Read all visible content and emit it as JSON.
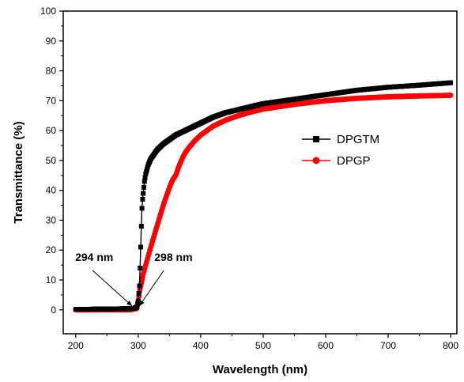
{
  "chart_data": {
    "type": "line",
    "title": "",
    "xlabel": "Wavelength (nm)",
    "ylabel": "Transmittance (%)",
    "xlim": [
      180,
      810
    ],
    "ylim": [
      -8,
      100
    ],
    "xticks": [
      200,
      300,
      400,
      500,
      600,
      700,
      800
    ],
    "yticks": [
      0,
      10,
      20,
      30,
      40,
      50,
      60,
      70,
      80,
      90,
      100
    ],
    "grid": false,
    "legend_position": "center-right",
    "series": [
      {
        "name": "DPGTM",
        "color": "#000000",
        "marker": "square",
        "x": [
          200,
          220,
          240,
          260,
          280,
          294,
          298,
          300,
          302,
          303,
          304,
          305,
          306,
          307,
          308,
          309,
          310,
          312,
          314,
          316,
          318,
          320,
          325,
          330,
          335,
          340,
          350,
          360,
          370,
          380,
          400,
          420,
          440,
          460,
          480,
          500,
          550,
          600,
          650,
          700,
          750,
          800
        ],
        "y": [
          0.2,
          0.2,
          0.3,
          0.3,
          0.4,
          0.5,
          1,
          3,
          8,
          14,
          21,
          28,
          34,
          37,
          39,
          41,
          43,
          45.5,
          47,
          48.5,
          49.5,
          50.5,
          52,
          53.5,
          54.5,
          55.5,
          57,
          58.5,
          59.5,
          60.5,
          62.5,
          64.5,
          66,
          67,
          68,
          69,
          70.5,
          72,
          73.5,
          74.5,
          75.2,
          76
        ]
      },
      {
        "name": "DPGP",
        "color": "#ff0000",
        "marker": "circle",
        "x": [
          200,
          220,
          240,
          260,
          280,
          290,
          298,
          300,
          302,
          305,
          308,
          312,
          316,
          320,
          325,
          330,
          335,
          340,
          345,
          350,
          355,
          360,
          365,
          370,
          375,
          380,
          390,
          400,
          420,
          440,
          460,
          480,
          500,
          550,
          600,
          650,
          700,
          750,
          800
        ],
        "y": [
          0,
          0,
          0,
          0,
          0,
          0.1,
          0.5,
          3,
          6,
          9,
          12,
          15,
          18,
          21,
          24.5,
          28,
          31.5,
          35,
          38,
          41,
          43.5,
          45,
          48,
          50.5,
          52.5,
          54,
          56.5,
          58.5,
          61.5,
          63.5,
          65,
          66.2,
          67.2,
          68.8,
          70,
          70.8,
          71.3,
          71.6,
          71.8
        ]
      }
    ],
    "annotations": [
      {
        "text": "294 nm",
        "target": [
          294,
          0.5
        ],
        "anchor": "upper-left"
      },
      {
        "text": "298 nm",
        "target": [
          298,
          0.5
        ],
        "anchor": "upper-right"
      }
    ]
  }
}
